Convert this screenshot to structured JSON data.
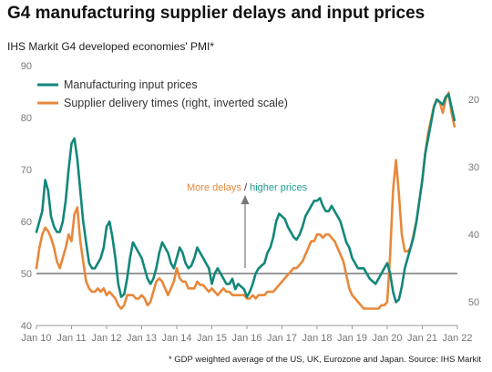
{
  "title": "G4 manufacturing supplier delays and input prices",
  "subtitle": "IHS Markit G4 developed economies' PMI*",
  "footnote": "* GDP weighted average of the US, UK, Eurozone and Japan.  Source: IHS Markit",
  "annotation": {
    "part1": "More delays",
    "separator": " / ",
    "part2": "higher prices",
    "color1": "#e8883a",
    "color2": "#1a9e8c",
    "arrow_color": "#777777"
  },
  "colors": {
    "input_prices": "#12877a",
    "delivery_times": "#e8883a",
    "reference_line": "#333333",
    "axis": "#999999"
  },
  "chart_data": {
    "type": "line",
    "x_unit": "month",
    "x_tick_labels": [
      "Jan 10",
      "Jan 11",
      "Jan 12",
      "Jan 13",
      "Jan 14",
      "Jan 15",
      "Jan 16",
      "Jan 17",
      "Jan 18",
      "Jan 19",
      "Jan 20",
      "Jan 21",
      "Jan 22"
    ],
    "left_axis": {
      "ylim": [
        40,
        90
      ],
      "ticks": [
        40,
        50,
        60,
        70,
        80,
        90
      ]
    },
    "right_axis": {
      "ylim": [
        15,
        53.5
      ],
      "inverted": true,
      "ticks": [
        20,
        30,
        40,
        50
      ]
    },
    "reference_line": 50,
    "legend_position": "top-left",
    "series": [
      {
        "name": "Manufacturing input prices",
        "axis": "left",
        "points": [
          [
            "2010-01",
            58
          ],
          [
            "2010-02",
            60
          ],
          [
            "2010-03",
            62
          ],
          [
            "2010-04",
            68
          ],
          [
            "2010-05",
            66
          ],
          [
            "2010-06",
            61
          ],
          [
            "2010-07",
            59
          ],
          [
            "2010-08",
            58
          ],
          [
            "2010-09",
            58
          ],
          [
            "2010-10",
            60
          ],
          [
            "2010-11",
            64
          ],
          [
            "2010-12",
            70
          ],
          [
            "2011-01",
            75
          ],
          [
            "2011-02",
            76
          ],
          [
            "2011-03",
            72
          ],
          [
            "2011-04",
            66
          ],
          [
            "2011-05",
            60
          ],
          [
            "2011-06",
            56
          ],
          [
            "2011-07",
            52
          ],
          [
            "2011-08",
            51
          ],
          [
            "2011-09",
            51
          ],
          [
            "2011-10",
            52
          ],
          [
            "2011-11",
            53
          ],
          [
            "2011-12",
            55
          ],
          [
            "2012-01",
            59
          ],
          [
            "2012-02",
            60
          ],
          [
            "2012-03",
            57
          ],
          [
            "2012-04",
            53
          ],
          [
            "2012-05",
            48
          ],
          [
            "2012-06",
            45.5
          ],
          [
            "2012-07",
            46
          ],
          [
            "2012-08",
            49
          ],
          [
            "2012-09",
            53
          ],
          [
            "2012-10",
            56
          ],
          [
            "2012-11",
            55
          ],
          [
            "2012-12",
            54
          ],
          [
            "2013-01",
            53
          ],
          [
            "2013-02",
            51
          ],
          [
            "2013-03",
            49
          ],
          [
            "2013-04",
            48
          ],
          [
            "2013-05",
            49
          ],
          [
            "2013-06",
            51
          ],
          [
            "2013-07",
            54
          ],
          [
            "2013-08",
            56
          ],
          [
            "2013-09",
            55
          ],
          [
            "2013-10",
            54
          ],
          [
            "2013-11",
            52
          ],
          [
            "2013-12",
            51
          ],
          [
            "2014-01",
            53
          ],
          [
            "2014-02",
            55
          ],
          [
            "2014-03",
            54
          ],
          [
            "2014-04",
            52
          ],
          [
            "2014-05",
            51
          ],
          [
            "2014-06",
            51.5
          ],
          [
            "2014-07",
            53
          ],
          [
            "2014-08",
            55
          ],
          [
            "2014-09",
            54
          ],
          [
            "2014-10",
            53
          ],
          [
            "2014-11",
            52
          ],
          [
            "2014-12",
            51
          ],
          [
            "2015-01",
            48
          ],
          [
            "2015-02",
            50
          ],
          [
            "2015-03",
            51
          ],
          [
            "2015-04",
            50
          ],
          [
            "2015-05",
            49
          ],
          [
            "2015-06",
            48
          ],
          [
            "2015-07",
            48
          ],
          [
            "2015-08",
            49
          ],
          [
            "2015-09",
            47
          ],
          [
            "2015-10",
            48
          ],
          [
            "2015-11",
            47.5
          ],
          [
            "2015-12",
            47
          ],
          [
            "2016-01",
            45.5
          ],
          [
            "2016-02",
            46.5
          ],
          [
            "2016-03",
            48
          ],
          [
            "2016-04",
            50
          ],
          [
            "2016-05",
            51
          ],
          [
            "2016-06",
            51.5
          ],
          [
            "2016-07",
            52
          ],
          [
            "2016-08",
            54
          ],
          [
            "2016-09",
            55
          ],
          [
            "2016-10",
            57
          ],
          [
            "2016-11",
            60
          ],
          [
            "2016-12",
            61.5
          ],
          [
            "2017-01",
            61
          ],
          [
            "2017-02",
            60.5
          ],
          [
            "2017-03",
            59
          ],
          [
            "2017-04",
            58
          ],
          [
            "2017-05",
            57
          ],
          [
            "2017-06",
            56.5
          ],
          [
            "2017-07",
            57.5
          ],
          [
            "2017-08",
            59
          ],
          [
            "2017-09",
            61
          ],
          [
            "2017-10",
            62
          ],
          [
            "2017-11",
            63
          ],
          [
            "2017-12",
            64
          ],
          [
            "2018-01",
            64
          ],
          [
            "2018-02",
            64.5
          ],
          [
            "2018-03",
            63
          ],
          [
            "2018-04",
            62
          ],
          [
            "2018-05",
            62
          ],
          [
            "2018-06",
            63
          ],
          [
            "2018-07",
            62
          ],
          [
            "2018-08",
            61
          ],
          [
            "2018-09",
            60
          ],
          [
            "2018-10",
            58
          ],
          [
            "2018-11",
            56
          ],
          [
            "2018-12",
            55
          ],
          [
            "2019-01",
            53
          ],
          [
            "2019-02",
            52
          ],
          [
            "2019-03",
            51
          ],
          [
            "2019-04",
            51
          ],
          [
            "2019-05",
            51
          ],
          [
            "2019-06",
            50
          ],
          [
            "2019-07",
            49
          ],
          [
            "2019-08",
            48.5
          ],
          [
            "2019-09",
            48
          ],
          [
            "2019-10",
            49
          ],
          [
            "2019-11",
            50
          ],
          [
            "2019-12",
            51
          ],
          [
            "2020-01",
            52
          ],
          [
            "2020-02",
            50
          ],
          [
            "2020-03",
            46.5
          ],
          [
            "2020-04",
            44.5
          ],
          [
            "2020-05",
            45
          ],
          [
            "2020-06",
            47.5
          ],
          [
            "2020-07",
            51
          ],
          [
            "2020-08",
            53
          ],
          [
            "2020-09",
            55
          ],
          [
            "2020-10",
            57
          ],
          [
            "2020-11",
            60
          ],
          [
            "2020-12",
            64
          ],
          [
            "2021-01",
            68
          ],
          [
            "2021-02",
            73
          ],
          [
            "2021-03",
            76
          ],
          [
            "2021-04",
            79
          ],
          [
            "2021-05",
            82
          ],
          [
            "2021-06",
            83.5
          ],
          [
            "2021-07",
            83
          ],
          [
            "2021-08",
            82.5
          ],
          [
            "2021-09",
            84
          ],
          [
            "2021-10",
            84.5
          ],
          [
            "2021-11",
            82
          ],
          [
            "2021-12",
            79.5
          ]
        ]
      },
      {
        "name": "Supplier delivery times (right, inverted scale)",
        "axis": "right",
        "points": [
          [
            "2010-01",
            45
          ],
          [
            "2010-02",
            42
          ],
          [
            "2010-03",
            40
          ],
          [
            "2010-04",
            39
          ],
          [
            "2010-05",
            39.5
          ],
          [
            "2010-06",
            40.5
          ],
          [
            "2010-07",
            42
          ],
          [
            "2010-08",
            44
          ],
          [
            "2010-09",
            45
          ],
          [
            "2010-10",
            43.5
          ],
          [
            "2010-11",
            42
          ],
          [
            "2010-12",
            40
          ],
          [
            "2011-01",
            41
          ],
          [
            "2011-02",
            37
          ],
          [
            "2011-03",
            36
          ],
          [
            "2011-04",
            41
          ],
          [
            "2011-05",
            44
          ],
          [
            "2011-06",
            47
          ],
          [
            "2011-07",
            48
          ],
          [
            "2011-08",
            48.5
          ],
          [
            "2011-09",
            48.5
          ],
          [
            "2011-10",
            48
          ],
          [
            "2011-11",
            48.5
          ],
          [
            "2011-12",
            48
          ],
          [
            "2012-01",
            49
          ],
          [
            "2012-02",
            48.5
          ],
          [
            "2012-03",
            49
          ],
          [
            "2012-04",
            49.5
          ],
          [
            "2012-05",
            50.5
          ],
          [
            "2012-06",
            51
          ],
          [
            "2012-07",
            50.5
          ],
          [
            "2012-08",
            49
          ],
          [
            "2012-09",
            49
          ],
          [
            "2012-10",
            49
          ],
          [
            "2012-11",
            49.5
          ],
          [
            "2012-12",
            49.5
          ],
          [
            "2013-01",
            49
          ],
          [
            "2013-02",
            49.5
          ],
          [
            "2013-03",
            50.5
          ],
          [
            "2013-04",
            50
          ],
          [
            "2013-05",
            48.5
          ],
          [
            "2013-06",
            47
          ],
          [
            "2013-07",
            46.5
          ],
          [
            "2013-08",
            47
          ],
          [
            "2013-09",
            48
          ],
          [
            "2013-10",
            49
          ],
          [
            "2013-11",
            48
          ],
          [
            "2013-12",
            47
          ],
          [
            "2014-01",
            45
          ],
          [
            "2014-02",
            46.5
          ],
          [
            "2014-03",
            47
          ],
          [
            "2014-04",
            47
          ],
          [
            "2014-05",
            48
          ],
          [
            "2014-06",
            48
          ],
          [
            "2014-07",
            48
          ],
          [
            "2014-08",
            47
          ],
          [
            "2014-09",
            47.5
          ],
          [
            "2014-10",
            47.5
          ],
          [
            "2014-11",
            48
          ],
          [
            "2014-12",
            48.5
          ],
          [
            "2015-01",
            48
          ],
          [
            "2015-02",
            48.5
          ],
          [
            "2015-03",
            49
          ],
          [
            "2015-04",
            48.5
          ],
          [
            "2015-05",
            48
          ],
          [
            "2015-06",
            48.5
          ],
          [
            "2015-07",
            48.5
          ],
          [
            "2015-08",
            49
          ],
          [
            "2015-09",
            49
          ],
          [
            "2015-10",
            49
          ],
          [
            "2015-11",
            49
          ],
          [
            "2015-12",
            49
          ],
          [
            "2016-01",
            49.5
          ],
          [
            "2016-02",
            49.5
          ],
          [
            "2016-03",
            49
          ],
          [
            "2016-04",
            49.5
          ],
          [
            "2016-05",
            49
          ],
          [
            "2016-06",
            49
          ],
          [
            "2016-07",
            49
          ],
          [
            "2016-08",
            48.5
          ],
          [
            "2016-09",
            48.5
          ],
          [
            "2016-10",
            48.5
          ],
          [
            "2016-11",
            48
          ],
          [
            "2016-12",
            47.5
          ],
          [
            "2017-01",
            47
          ],
          [
            "2017-02",
            46.5
          ],
          [
            "2017-03",
            46
          ],
          [
            "2017-04",
            45.5
          ],
          [
            "2017-05",
            45
          ],
          [
            "2017-06",
            45
          ],
          [
            "2017-07",
            44.5
          ],
          [
            "2017-08",
            44
          ],
          [
            "2017-09",
            43
          ],
          [
            "2017-10",
            42
          ],
          [
            "2017-11",
            41
          ],
          [
            "2017-12",
            41
          ],
          [
            "2018-01",
            40
          ],
          [
            "2018-02",
            40
          ],
          [
            "2018-03",
            40.5
          ],
          [
            "2018-04",
            40
          ],
          [
            "2018-05",
            40
          ],
          [
            "2018-06",
            40.5
          ],
          [
            "2018-07",
            41
          ],
          [
            "2018-08",
            42
          ],
          [
            "2018-09",
            43
          ],
          [
            "2018-10",
            44
          ],
          [
            "2018-11",
            46
          ],
          [
            "2018-12",
            48
          ],
          [
            "2019-01",
            49
          ],
          [
            "2019-02",
            49.5
          ],
          [
            "2019-03",
            50
          ],
          [
            "2019-04",
            50.5
          ],
          [
            "2019-05",
            51
          ],
          [
            "2019-06",
            51
          ],
          [
            "2019-07",
            51
          ],
          [
            "2019-08",
            51
          ],
          [
            "2019-09",
            51
          ],
          [
            "2019-10",
            51
          ],
          [
            "2019-11",
            50.5
          ],
          [
            "2019-12",
            50.5
          ],
          [
            "2020-01",
            50
          ],
          [
            "2020-02",
            43
          ],
          [
            "2020-03",
            33.5
          ],
          [
            "2020-04",
            29
          ],
          [
            "2020-05",
            34
          ],
          [
            "2020-06",
            40
          ],
          [
            "2020-07",
            42.5
          ],
          [
            "2020-08",
            42.5
          ],
          [
            "2020-09",
            42
          ],
          [
            "2020-10",
            40
          ],
          [
            "2020-11",
            38
          ],
          [
            "2020-12",
            35
          ],
          [
            "2021-01",
            32
          ],
          [
            "2021-02",
            28
          ],
          [
            "2021-03",
            25
          ],
          [
            "2021-04",
            23
          ],
          [
            "2021-05",
            21
          ],
          [
            "2021-06",
            20
          ],
          [
            "2021-07",
            20.5
          ],
          [
            "2021-08",
            22
          ],
          [
            "2021-09",
            20
          ],
          [
            "2021-10",
            19
          ],
          [
            "2021-11",
            22
          ],
          [
            "2021-12",
            24
          ]
        ]
      }
    ]
  }
}
